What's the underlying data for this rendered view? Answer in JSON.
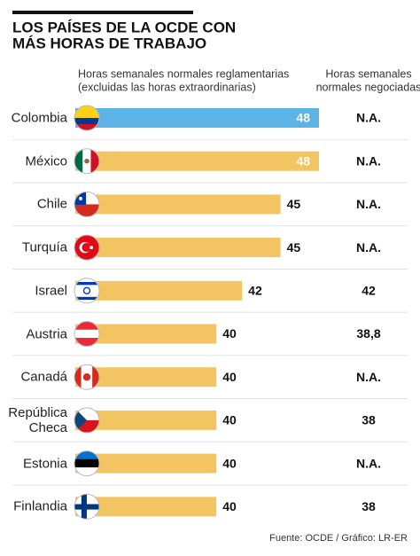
{
  "chart_data": {
    "type": "bar",
    "title_lines": [
      "LOS PAÍSES DE LA OCDE CON",
      "MÁS HORAS DE TRABAJO"
    ],
    "value_header_lines": [
      "Horas semanales normales reglamentarias",
      "(excluidas las horas extraordinarias)"
    ],
    "negotiated_header_lines": [
      "Horas semanales",
      "normales negociadas"
    ],
    "categories": [
      "Colombia",
      "México",
      "Chile",
      "Turquía",
      "Israel",
      "Austria",
      "Canadá",
      "República Checa",
      "Estonia",
      "Finlandia"
    ],
    "values": [
      48,
      48,
      45,
      45,
      42,
      40,
      40,
      40,
      40,
      40
    ],
    "colors": [
      "#5bb4e5",
      "#f2c462",
      "#f2c462",
      "#f2c462",
      "#f2c462",
      "#f2c462",
      "#f2c462",
      "#f2c462",
      "#f2c462",
      "#f2c462"
    ],
    "negotiated": [
      "N.A.",
      "N.A.",
      "N.A.",
      "N.A.",
      "42",
      "38,8",
      "N.A.",
      "38",
      "N.A.",
      "38"
    ],
    "xlim": [
      29,
      48
    ],
    "source": "Fuente: OCDE / Gráfico: LR-ER"
  }
}
